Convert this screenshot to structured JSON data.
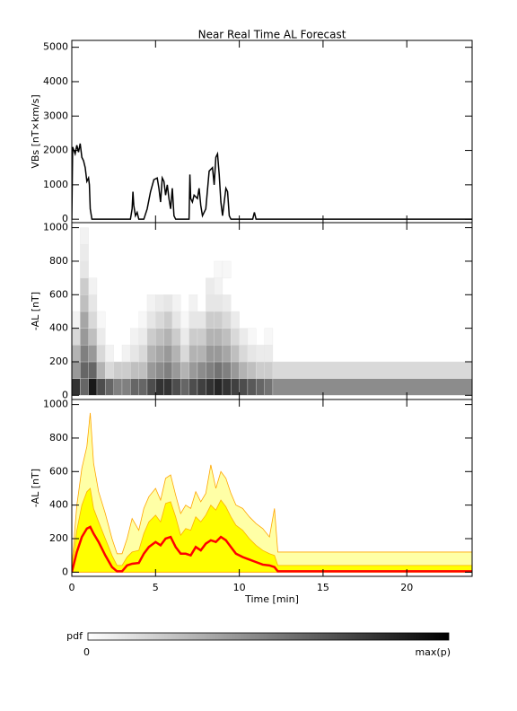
{
  "chart_data": [
    {
      "type": "line",
      "title": "Near Real Time AL Forecast",
      "ylabel": "VBs [nT×km/s]",
      "color": "#000000",
      "xlim": [
        0,
        23.9
      ],
      "xticks": [
        0,
        5,
        10,
        15,
        20
      ],
      "xtick_labels": false,
      "ylim": [
        -100,
        5200
      ],
      "yticks": [
        0,
        1000,
        2000,
        3000,
        4000,
        5000
      ],
      "x": [
        0,
        0.05,
        0.2,
        0.3,
        0.4,
        0.5,
        0.6,
        0.7,
        0.8,
        0.9,
        1.0,
        1.05,
        1.1,
        1.2,
        3.5,
        3.6,
        3.65,
        3.7,
        3.8,
        3.9,
        4.0,
        4.3,
        4.5,
        4.7,
        4.9,
        5.1,
        5.2,
        5.3,
        5.4,
        5.5,
        5.6,
        5.7,
        5.8,
        5.9,
        6.0,
        6.1,
        6.2,
        7.0,
        7.05,
        7.1,
        7.2,
        7.3,
        7.5,
        7.6,
        7.7,
        7.8,
        8.0,
        8.2,
        8.4,
        8.5,
        8.6,
        8.7,
        8.8,
        8.9,
        9.0,
        9.2,
        9.3,
        9.4,
        9.5,
        10.8,
        10.9,
        11.0,
        23.9
      ],
      "values": [
        0,
        2100,
        1900,
        2150,
        1950,
        2200,
        1800,
        1700,
        1500,
        1100,
        1200,
        1000,
        300,
        0,
        0,
        300,
        800,
        400,
        100,
        200,
        0,
        0,
        300,
        800,
        1150,
        1200,
        900,
        500,
        1200,
        1100,
        700,
        1000,
        600,
        300,
        900,
        100,
        0,
        0,
        1300,
        600,
        500,
        700,
        600,
        900,
        400,
        100,
        300,
        1400,
        1500,
        1000,
        1800,
        1900,
        1300,
        500,
        100,
        900,
        800,
        100,
        0,
        0,
        200,
        0,
        0
      ]
    },
    {
      "type": "heatmap",
      "ylabel": "-AL [nT]",
      "xlim": [
        0,
        23.9
      ],
      "xticks": [
        0,
        5,
        10,
        15,
        20
      ],
      "xtick_labels": false,
      "ylim": [
        -25,
        1030
      ],
      "yticks": [
        0,
        200,
        400,
        600,
        800,
        1000
      ],
      "x_bins": [
        0,
        0.5,
        1,
        1.5,
        2,
        2.5,
        3,
        3.5,
        4,
        4.5,
        5,
        5.5,
        6,
        6.5,
        7,
        7.5,
        8,
        8.5,
        9,
        9.5,
        10,
        10.5,
        11,
        11.5,
        12,
        23.9
      ],
      "y_bins": [
        0,
        100,
        200,
        300,
        400,
        500,
        600,
        700,
        800,
        900,
        1000
      ],
      "values": [
        [
          80,
          40,
          30,
          15,
          5,
          0,
          0,
          0,
          0,
          0
        ],
        [
          60,
          60,
          50,
          40,
          35,
          25,
          20,
          10,
          8,
          5
        ],
        [
          90,
          60,
          40,
          25,
          15,
          10,
          5,
          0,
          0,
          0
        ],
        [
          70,
          30,
          15,
          8,
          3,
          0,
          0,
          0,
          0,
          0
        ],
        [
          60,
          15,
          5,
          0,
          0,
          0,
          0,
          0,
          0,
          0
        ],
        [
          50,
          20,
          0,
          0,
          0,
          0,
          0,
          0,
          0,
          0
        ],
        [
          50,
          20,
          5,
          0,
          0,
          0,
          0,
          0,
          0,
          0
        ],
        [
          60,
          25,
          10,
          5,
          0,
          0,
          0,
          0,
          0,
          0
        ],
        [
          60,
          25,
          15,
          8,
          3,
          0,
          0,
          0,
          0,
          0
        ],
        [
          70,
          40,
          30,
          20,
          10,
          5,
          0,
          0,
          0,
          0
        ],
        [
          80,
          45,
          35,
          25,
          15,
          8,
          0,
          0,
          0,
          0
        ],
        [
          80,
          50,
          40,
          30,
          20,
          10,
          0,
          0,
          0,
          0
        ],
        [
          70,
          40,
          30,
          20,
          10,
          5,
          0,
          0,
          0,
          0
        ],
        [
          60,
          30,
          15,
          8,
          3,
          0,
          0,
          0,
          0,
          0
        ],
        [
          70,
          40,
          30,
          20,
          10,
          5,
          0,
          0,
          0,
          0
        ],
        [
          75,
          45,
          30,
          20,
          10,
          0,
          0,
          0,
          0,
          0
        ],
        [
          80,
          50,
          40,
          30,
          20,
          10,
          8,
          0,
          0,
          0
        ],
        [
          85,
          55,
          40,
          30,
          20,
          10,
          5,
          3,
          0,
          0
        ],
        [
          80,
          50,
          35,
          25,
          15,
          8,
          0,
          3,
          0,
          0
        ],
        [
          75,
          40,
          25,
          15,
          8,
          0,
          0,
          0,
          0,
          0
        ],
        [
          70,
          30,
          15,
          8,
          0,
          0,
          0,
          0,
          0,
          0
        ],
        [
          65,
          25,
          10,
          3,
          0,
          0,
          0,
          0,
          0,
          0
        ],
        [
          60,
          20,
          8,
          0,
          0,
          0,
          0,
          0,
          0,
          0
        ],
        [
          55,
          20,
          8,
          3,
          0,
          0,
          0,
          0,
          0,
          0
        ],
        [
          45,
          15,
          0,
          0,
          0,
          0,
          0,
          0,
          0,
          0
        ]
      ]
    },
    {
      "type": "band",
      "ylabel": "-AL [nT]",
      "xlabel": "Time [min]",
      "xlim": [
        0,
        23.9
      ],
      "xticks": [
        0,
        5,
        10,
        15,
        20
      ],
      "xtick_labels": true,
      "ylim": [
        -25,
        1030
      ],
      "yticks": [
        0,
        200,
        400,
        600,
        800,
        1000
      ],
      "x": [
        0,
        0.3,
        0.6,
        0.9,
        1.1,
        1.3,
        1.6,
        2.0,
        2.4,
        2.7,
        3.0,
        3.3,
        3.6,
        4.0,
        4.3,
        4.6,
        5.0,
        5.3,
        5.6,
        5.9,
        6.2,
        6.5,
        6.8,
        7.1,
        7.4,
        7.7,
        8.0,
        8.3,
        8.6,
        8.9,
        9.2,
        9.5,
        9.8,
        10.2,
        10.6,
        11.0,
        11.4,
        11.8,
        12.1,
        12.3,
        23.9
      ],
      "series": [
        {
          "kind": "area",
          "color": "#ffffa6",
          "edge_color": "#ffa500",
          "values": [
            30,
            400,
            620,
            750,
            950,
            650,
            480,
            350,
            200,
            110,
            110,
            200,
            320,
            250,
            380,
            450,
            500,
            430,
            560,
            580,
            460,
            350,
            400,
            380,
            480,
            420,
            470,
            640,
            500,
            600,
            560,
            470,
            400,
            380,
            330,
            290,
            260,
            210,
            380,
            120,
            120
          ]
        },
        {
          "kind": "area",
          "color": "#ffff00",
          "edge_color": "#ffb000",
          "values": [
            20,
            250,
            400,
            480,
            500,
            380,
            300,
            200,
            100,
            40,
            40,
            90,
            120,
            130,
            230,
            300,
            340,
            300,
            410,
            420,
            330,
            220,
            260,
            250,
            330,
            300,
            340,
            400,
            370,
            430,
            390,
            330,
            280,
            250,
            200,
            160,
            130,
            110,
            100,
            40,
            40
          ]
        },
        {
          "kind": "line",
          "color": "#ff0000",
          "values": [
            0,
            120,
            210,
            260,
            270,
            230,
            180,
            100,
            30,
            5,
            5,
            40,
            50,
            55,
            110,
            150,
            180,
            160,
            200,
            210,
            150,
            110,
            110,
            100,
            150,
            130,
            170,
            190,
            180,
            210,
            190,
            150,
            110,
            90,
            75,
            60,
            45,
            40,
            30,
            5,
            5
          ]
        }
      ]
    }
  ],
  "colorbar": {
    "label": "pdf",
    "min": 0,
    "max_label": "max(p)"
  }
}
